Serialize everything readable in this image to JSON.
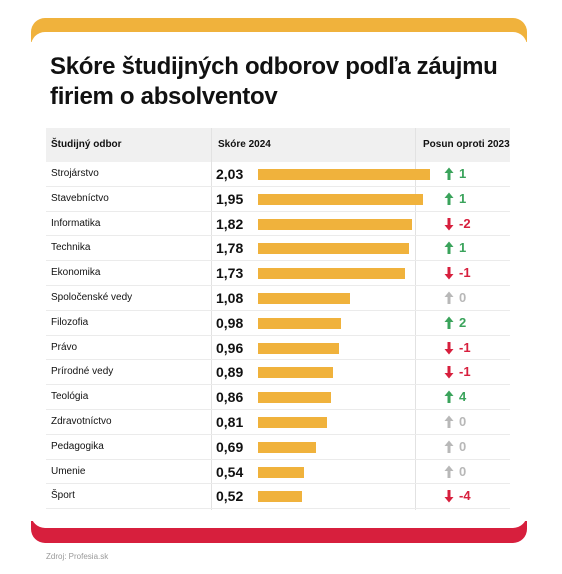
{
  "chart_data": {
    "type": "table",
    "title": "Skóre študijných odborov podľa záujmu firiem o absolventov",
    "columns": [
      "Študijný odbor",
      "Skóre 2024",
      "Posun oproti 2023"
    ],
    "rows": [
      {
        "field": "Strojárstvo",
        "score": 2.03,
        "score_label": "2,03",
        "change": 1,
        "change_label": "1",
        "direction": "up"
      },
      {
        "field": "Stavebníctvo",
        "score": 1.95,
        "score_label": "1,95",
        "change": 1,
        "change_label": "1",
        "direction": "up"
      },
      {
        "field": "Informatika",
        "score": 1.82,
        "score_label": "1,82",
        "change": -2,
        "change_label": "-2",
        "direction": "down"
      },
      {
        "field": "Technika",
        "score": 1.78,
        "score_label": "1,78",
        "change": 1,
        "change_label": "1",
        "direction": "up"
      },
      {
        "field": "Ekonomika",
        "score": 1.73,
        "score_label": "1,73",
        "change": -1,
        "change_label": "-1",
        "direction": "down"
      },
      {
        "field": "Spoločenské vedy",
        "score": 1.08,
        "score_label": "1,08",
        "change": 0,
        "change_label": "0",
        "direction": "same"
      },
      {
        "field": "Filozofia",
        "score": 0.98,
        "score_label": "0,98",
        "change": 2,
        "change_label": "2",
        "direction": "up"
      },
      {
        "field": "Právo",
        "score": 0.96,
        "score_label": "0,96",
        "change": -1,
        "change_label": "-1",
        "direction": "down"
      },
      {
        "field": "Prírodné vedy",
        "score": 0.89,
        "score_label": "0,89",
        "change": -1,
        "change_label": "-1",
        "direction": "down"
      },
      {
        "field": "Teológia",
        "score": 0.86,
        "score_label": "0,86",
        "change": 4,
        "change_label": "4",
        "direction": "up"
      },
      {
        "field": "Zdravotníctvo",
        "score": 0.81,
        "score_label": "0,81",
        "change": 0,
        "change_label": "0",
        "direction": "same"
      },
      {
        "field": "Pedagogika",
        "score": 0.69,
        "score_label": "0,69",
        "change": 0,
        "change_label": "0",
        "direction": "same"
      },
      {
        "field": "Umenie",
        "score": 0.54,
        "score_label": "0,54",
        "change": 0,
        "change_label": "0",
        "direction": "same"
      },
      {
        "field": "Šport",
        "score": 0.52,
        "score_label": "0,52",
        "change": -4,
        "change_label": "-4",
        "direction": "down"
      }
    ],
    "source": "Zdroj: Profesia.sk"
  },
  "colors": {
    "bar": "#f0b23c",
    "top_frame": "#f0b23c",
    "bottom_frame": "#d71f3d",
    "up": "#3aa35b",
    "down": "#d71f3d",
    "same": "#b8b8b8"
  },
  "icons": {
    "up": "arrow-up-icon",
    "down": "arrow-down-icon",
    "same": "arrow-up-icon"
  }
}
